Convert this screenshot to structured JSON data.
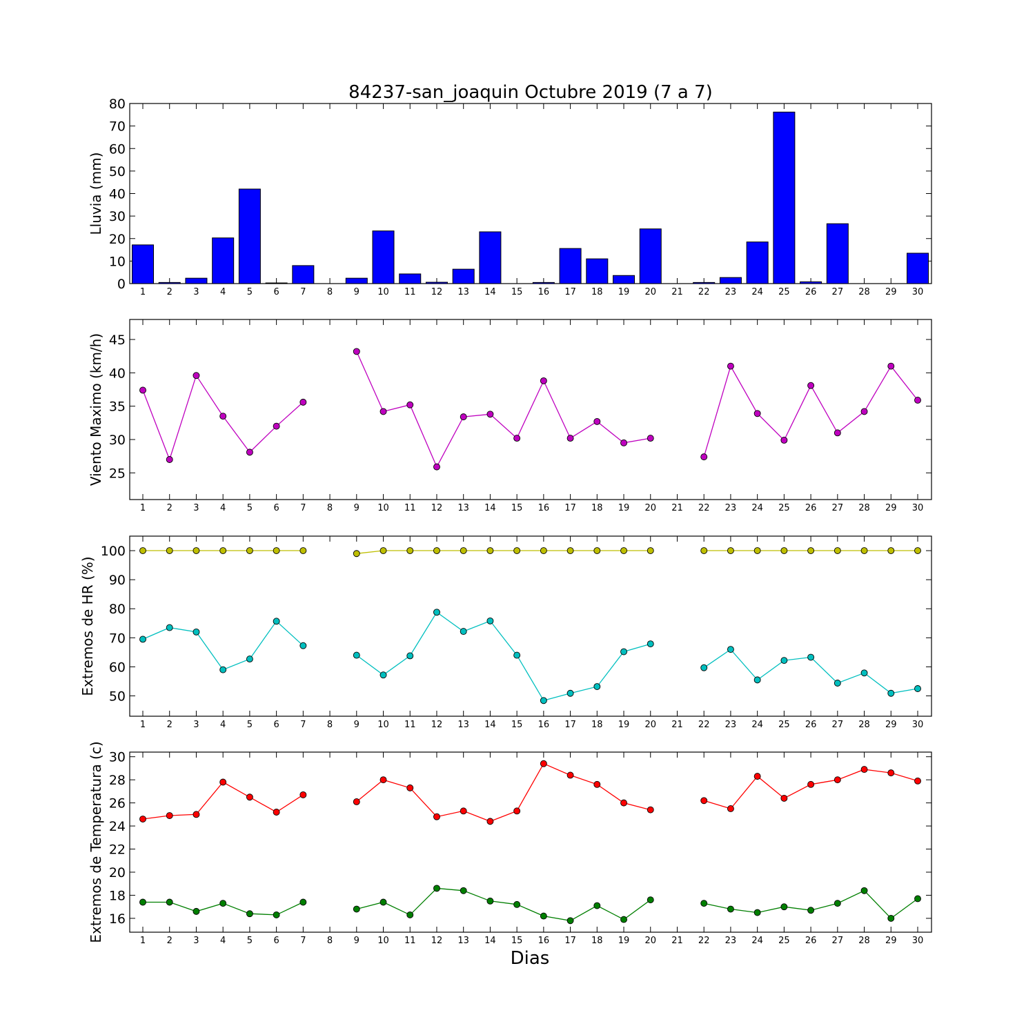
{
  "chart_data": [
    {
      "type": "bar",
      "title": "84237-san_joaquin Octubre 2019  (7 a 7)",
      "ylabel": "Lluvia (mm)",
      "xlabel": "",
      "ylim": [
        0,
        80
      ],
      "yticks": [
        "0",
        "10",
        "20",
        "30",
        "40",
        "50",
        "60",
        "70",
        "80"
      ],
      "x": [
        1,
        2,
        3,
        4,
        5,
        6,
        7,
        8,
        9,
        10,
        11,
        12,
        13,
        14,
        15,
        16,
        17,
        18,
        19,
        20,
        21,
        22,
        23,
        24,
        25,
        26,
        27,
        28,
        29,
        30
      ],
      "xticks": [
        "1",
        "2",
        "3",
        "4",
        "5",
        "6",
        "7",
        "8",
        "9",
        "10",
        "11",
        "12",
        "13",
        "14",
        "15",
        "16",
        "17",
        "18",
        "19",
        "20",
        "21",
        "22",
        "23",
        "24",
        "25",
        "26",
        "27",
        "28",
        "29",
        "30"
      ],
      "series": [
        {
          "values": [
            17.2,
            0.5,
            2.4,
            20.3,
            42.0,
            0.3,
            8.0,
            null,
            2.4,
            23.4,
            4.3,
            0.6,
            6.4,
            23.0,
            0,
            0.5,
            15.6,
            11.0,
            3.6,
            24.3,
            null,
            0.5,
            2.7,
            18.5,
            76.2,
            0.8,
            26.6,
            0,
            0,
            13.5
          ],
          "color": "#0000ff"
        }
      ]
    },
    {
      "type": "line",
      "ylabel": "Viento Maximo (km/h)",
      "xlabel": "",
      "ylim": [
        21,
        48
      ],
      "yticks": [
        "25",
        "30",
        "35",
        "40",
        "45"
      ],
      "x": [
        1,
        2,
        3,
        4,
        5,
        6,
        7,
        8,
        9,
        10,
        11,
        12,
        13,
        14,
        15,
        16,
        17,
        18,
        19,
        20,
        21,
        22,
        23,
        24,
        25,
        26,
        27,
        28,
        29,
        30
      ],
      "xticks": [
        "1",
        "2",
        "3",
        "4",
        "5",
        "6",
        "7",
        "8",
        "9",
        "10",
        "11",
        "12",
        "13",
        "14",
        "15",
        "16",
        "17",
        "18",
        "19",
        "20",
        "21",
        "22",
        "23",
        "24",
        "25",
        "26",
        "27",
        "28",
        "29",
        "30"
      ],
      "series": [
        {
          "values": [
            37.4,
            27.0,
            39.6,
            33.5,
            28.1,
            32.0,
            35.6,
            null,
            43.2,
            34.2,
            35.2,
            25.9,
            33.4,
            33.8,
            30.2,
            38.8,
            30.2,
            32.7,
            29.5,
            30.2,
            null,
            27.4,
            41.0,
            33.9,
            29.9,
            38.1,
            31.0,
            34.2,
            41.0,
            35.9
          ],
          "color": "#bf00bf"
        }
      ]
    },
    {
      "type": "line",
      "ylabel": "Extremos de HR (%)",
      "xlabel": "",
      "ylim": [
        43,
        105
      ],
      "yticks": [
        "50",
        "60",
        "70",
        "80",
        "90",
        "100"
      ],
      "x": [
        1,
        2,
        3,
        4,
        5,
        6,
        7,
        8,
        9,
        10,
        11,
        12,
        13,
        14,
        15,
        16,
        17,
        18,
        19,
        20,
        21,
        22,
        23,
        24,
        25,
        26,
        27,
        28,
        29,
        30
      ],
      "xticks": [
        "1",
        "2",
        "3",
        "4",
        "5",
        "6",
        "7",
        "8",
        "9",
        "10",
        "11",
        "12",
        "13",
        "14",
        "15",
        "16",
        "17",
        "18",
        "19",
        "20",
        "21",
        "22",
        "23",
        "24",
        "25",
        "26",
        "27",
        "28",
        "29",
        "30"
      ],
      "series": [
        {
          "values": [
            100,
            100,
            100,
            100,
            100,
            100,
            100,
            null,
            99,
            100,
            100,
            100,
            100,
            100,
            100,
            100,
            100,
            100,
            100,
            100,
            null,
            100,
            100,
            100,
            100,
            100,
            100,
            100,
            100,
            100
          ],
          "color": "#bfbf00"
        },
        {
          "values": [
            69.5,
            73.5,
            72.0,
            59.0,
            62.7,
            75.7,
            67.3,
            null,
            64.0,
            57.2,
            63.8,
            78.8,
            72.2,
            75.8,
            64.0,
            48.4,
            50.9,
            53.2,
            65.2,
            67.9,
            null,
            59.7,
            66.0,
            55.5,
            62.2,
            63.3,
            54.4,
            57.9,
            50.9,
            52.5
          ],
          "color": "#00bfbf"
        }
      ]
    },
    {
      "type": "line",
      "ylabel": "Extremos de Temperatura (c)",
      "xlabel": "Dias",
      "ylim": [
        14.8,
        30.4
      ],
      "yticks": [
        "16",
        "18",
        "20",
        "22",
        "24",
        "26",
        "28",
        "30"
      ],
      "x": [
        1,
        2,
        3,
        4,
        5,
        6,
        7,
        8,
        9,
        10,
        11,
        12,
        13,
        14,
        15,
        16,
        17,
        18,
        19,
        20,
        21,
        22,
        23,
        24,
        25,
        26,
        27,
        28,
        29,
        30
      ],
      "xticks": [
        "1",
        "2",
        "3",
        "4",
        "5",
        "6",
        "7",
        "8",
        "9",
        "10",
        "11",
        "12",
        "13",
        "14",
        "15",
        "16",
        "17",
        "18",
        "19",
        "20",
        "21",
        "22",
        "23",
        "24",
        "25",
        "26",
        "27",
        "28",
        "29",
        "30"
      ],
      "series": [
        {
          "values": [
            24.6,
            24.9,
            25.0,
            27.8,
            26.5,
            25.2,
            26.7,
            null,
            26.1,
            28.0,
            27.3,
            24.8,
            25.3,
            24.4,
            25.3,
            29.4,
            28.4,
            27.6,
            26.0,
            25.4,
            null,
            26.2,
            25.5,
            28.3,
            26.4,
            27.6,
            28.0,
            28.9,
            28.6,
            27.9
          ],
          "color": "#ff0000"
        },
        {
          "values": [
            17.4,
            17.4,
            16.6,
            17.3,
            16.4,
            16.3,
            17.4,
            null,
            16.8,
            17.4,
            16.3,
            18.6,
            18.4,
            17.5,
            17.2,
            16.2,
            15.8,
            17.1,
            15.9,
            17.6,
            null,
            17.3,
            16.8,
            16.5,
            17.0,
            16.7,
            17.3,
            18.4,
            16.0,
            17.7
          ],
          "color": "#007f00"
        }
      ]
    }
  ]
}
